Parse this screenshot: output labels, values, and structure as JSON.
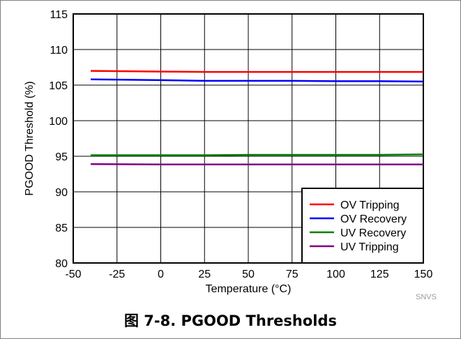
{
  "chart_data": {
    "type": "line",
    "xlabel": "Temperature (°C)",
    "ylabel": "PGOOD Threshold (%)",
    "xlim": [
      -50,
      150
    ],
    "ylim": [
      80,
      115
    ],
    "xticks": [
      -50,
      -25,
      0,
      25,
      50,
      75,
      100,
      125,
      150
    ],
    "yticks": [
      80,
      85,
      90,
      95,
      100,
      105,
      110,
      115
    ],
    "grid": true,
    "legend_position": "bottom-right",
    "series": [
      {
        "name": "OV Tripping",
        "color": "#ff0000",
        "x": [
          -40,
          0,
          25,
          50,
          75,
          100,
          125,
          150
        ],
        "y": [
          107.0,
          106.9,
          106.85,
          106.85,
          106.85,
          106.85,
          106.85,
          106.85
        ]
      },
      {
        "name": "OV Recovery",
        "color": "#0000ff",
        "x": [
          -40,
          0,
          25,
          50,
          75,
          100,
          125,
          150
        ],
        "y": [
          105.8,
          105.7,
          105.6,
          105.6,
          105.6,
          105.55,
          105.55,
          105.5
        ]
      },
      {
        "name": "UV Recovery",
        "color": "#008000",
        "x": [
          -40,
          0,
          25,
          50,
          75,
          100,
          125,
          150
        ],
        "y": [
          95.15,
          95.15,
          95.15,
          95.2,
          95.2,
          95.2,
          95.2,
          95.25
        ]
      },
      {
        "name": "UV Tripping",
        "color": "#800080",
        "x": [
          -40,
          0,
          25,
          50,
          75,
          100,
          125,
          150
        ],
        "y": [
          93.9,
          93.85,
          93.85,
          93.85,
          93.85,
          93.85,
          93.85,
          93.85
        ]
      }
    ]
  },
  "watermark": "SNVS",
  "caption": "图 7-8. PGOOD Thresholds"
}
